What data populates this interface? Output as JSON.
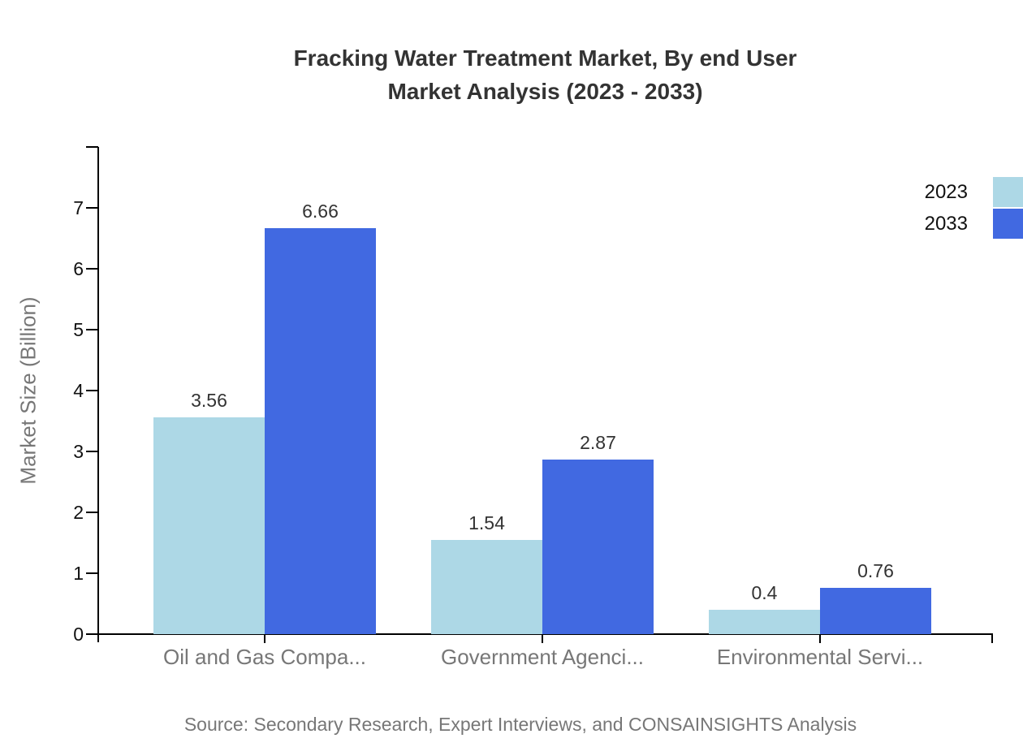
{
  "chart_data": {
    "type": "bar",
    "title": "Fracking Water Treatment Market, By end User",
    "subtitle": "Market Analysis (2023 - 2033)",
    "categories": [
      "Oil and Gas Compa...",
      "Government Agenci...",
      "Environmental Servi..."
    ],
    "series": [
      {
        "name": "2023",
        "color": "#ADD8E6",
        "values": [
          3.56,
          1.54,
          0.4
        ]
      },
      {
        "name": "2033",
        "color": "#4169E1",
        "values": [
          6.66,
          2.87,
          0.76
        ]
      }
    ],
    "ylabel": "Market Size (Billion)",
    "xlabel": "",
    "ylim": [
      0,
      8
    ],
    "yticks": [
      0,
      1,
      2,
      3,
      4,
      5,
      6,
      7
    ],
    "grid": false,
    "legend_position": "top-right",
    "value_labels_shown": true
  },
  "source_note": "Source: Secondary Research, Expert Interviews, and CONSAINSIGHTS Analysis",
  "colors": {
    "series_2023": "#ADD8E6",
    "series_2033": "#4169E1",
    "axis": "#000000",
    "title_text": "#333333",
    "tick_label_text": "#111111",
    "category_label_text": "#777777",
    "value_label_text": "#333333",
    "source_text": "#777777",
    "background": "#ffffff"
  }
}
